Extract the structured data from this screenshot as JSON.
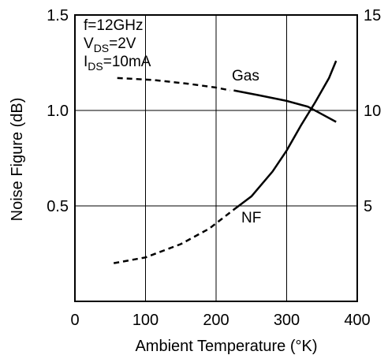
{
  "chart_data": {
    "type": "line",
    "title": "",
    "xlabel": "Ambient Temperature (°K)",
    "ylabel": "Noise Figure (dB)",
    "y2label": "",
    "xlim": [
      0,
      400
    ],
    "ylim": [
      0,
      1.5
    ],
    "y2lim": [
      0,
      15
    ],
    "xticks": [
      0,
      100,
      200,
      300,
      400
    ],
    "yticks": [
      0.5,
      1.0,
      1.5
    ],
    "y2ticks": [
      5,
      10,
      15
    ],
    "xtick_labels": [
      "0",
      "100",
      "200",
      "300",
      "400"
    ],
    "ytick_labels": [
      "0.5",
      "1.0",
      "1.5"
    ],
    "y2tick_labels": [
      "5",
      "10",
      "15"
    ],
    "grid": true,
    "conditions": {
      "line1": {
        "prefix": "f=12GHz"
      },
      "line2": {
        "prefix": "V",
        "sub": "DS",
        "suffix": "=2V"
      },
      "line3": {
        "prefix": "I",
        "sub": "DS",
        "suffix": "=10mA"
      }
    },
    "series": [
      {
        "name": "Gas",
        "axis": "right",
        "dashed_segment": [
          [
            60,
            11.7
          ],
          [
            110,
            11.6
          ],
          [
            160,
            11.4
          ],
          [
            200,
            11.2
          ],
          [
            220,
            11.05
          ]
        ],
        "solid_segment": [
          [
            225,
            11.05
          ],
          [
            260,
            10.8
          ],
          [
            300,
            10.5
          ],
          [
            330,
            10.2
          ],
          [
            350,
            9.8
          ],
          [
            370,
            9.4
          ]
        ]
      },
      {
        "name": "NF",
        "axis": "left",
        "dashed_segment": [
          [
            55,
            0.2
          ],
          [
            100,
            0.23
          ],
          [
            150,
            0.3
          ],
          [
            190,
            0.38
          ],
          [
            225,
            0.48
          ]
        ],
        "solid_segment": [
          [
            225,
            0.48
          ],
          [
            250,
            0.55
          ],
          [
            280,
            0.68
          ],
          [
            300,
            0.79
          ],
          [
            320,
            0.92
          ],
          [
            340,
            1.04
          ],
          [
            360,
            1.17
          ],
          [
            370,
            1.26
          ]
        ]
      }
    ]
  }
}
